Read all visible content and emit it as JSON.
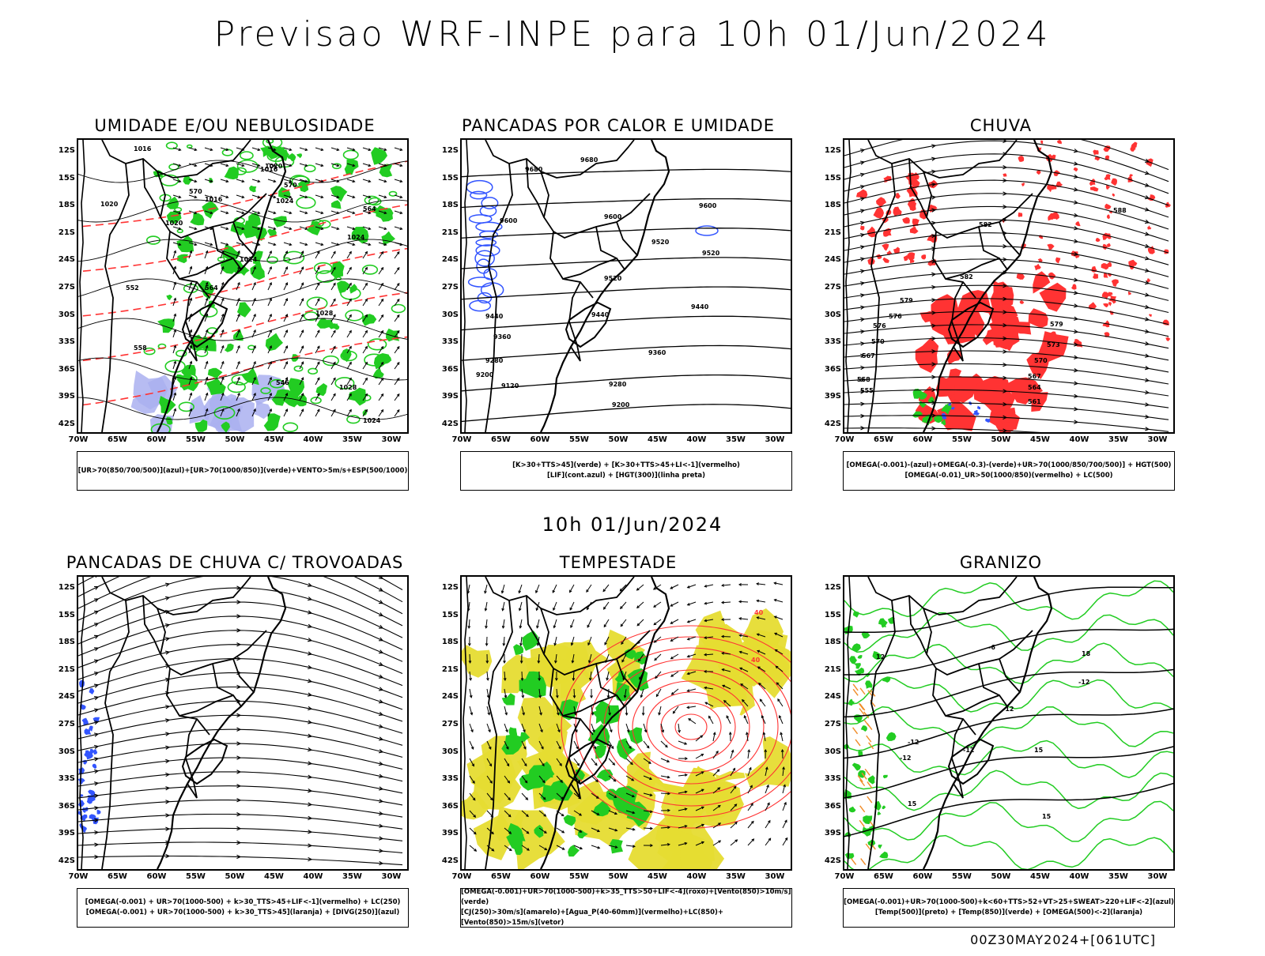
{
  "header": {
    "title": "Previsao WRF-INPE  para 10h 01/Jun/2024"
  },
  "mid_title": "10h 01/Jun/2024",
  "footer": "00Z30MAY2024+[061UTC]",
  "axes": {
    "lat_labels": [
      "12S",
      "15S",
      "18S",
      "21S",
      "24S",
      "27S",
      "30S",
      "33S",
      "36S",
      "39S",
      "42S"
    ],
    "lon_labels": [
      "70W",
      "65W",
      "60W",
      "55W",
      "50W",
      "45W",
      "40W",
      "35W",
      "30W"
    ]
  },
  "colors": {
    "green": "#22cc22",
    "red": "#ff3333",
    "blue": "#3355ff",
    "yellow": "#e6dc32",
    "lavender": "#aab0f0",
    "orange": "#f08c28",
    "black": "#000000"
  },
  "panels": [
    {
      "title": "UMIDADE E/OU NEBULOSIDADE",
      "legend": [
        "[UR>70(850/700/500)](azul)+[UR>70(1000/850)](verde)+VENTO>5m/s+ESP(500/1000)"
      ],
      "contour_labels": [
        "1016",
        "1016",
        "1016",
        "1020",
        "1020",
        "1020",
        "1024",
        "1024",
        "1024",
        "1028",
        "1028",
        "1024",
        "570",
        "564",
        "558",
        "552",
        "546",
        "570",
        "564"
      ]
    },
    {
      "title": "PANCADAS POR CALOR E UMIDADE",
      "legend": [
        "[K>30+TTS>45](verde) + [K>30+TTS>45+LI<-1](vermelho)",
        "[LIF](cont.azul) + [HGT(300)](linha preta)"
      ],
      "contour_labels": [
        "9680",
        "9680",
        "9600",
        "9600",
        "9600",
        "9520",
        "9520",
        "9520",
        "9440",
        "9440",
        "9440",
        "9360",
        "9360",
        "9280",
        "9280",
        "9200",
        "9200",
        "9120"
      ]
    },
    {
      "title": "CHUVA",
      "legend": [
        "[OMEGA(-0.001)-(azul)+OMEGA(-0.3)-(verde)+UR>70(1000/850/700/500)] + HGT(500)",
        "[OMEGA(-0.01)_UR>50(1000/850)(vermelho) + LC(500)"
      ],
      "contour_labels": [
        "588",
        "582",
        "582",
        "579",
        "579",
        "576",
        "576",
        "573",
        "570",
        "570",
        "567",
        "567",
        "564",
        "561",
        "558",
        "555"
      ]
    },
    {
      "title": "PANCADAS DE CHUVA C/ TROVOADAS",
      "legend": [
        "[OMEGA(-0.001) + UR>70(1000-500) + k>30_TTS>45+LIF<-1](vermelho) + LC(250)",
        "[OMEGA(-0.001) + UR>70(1000-500) + k>30_TTS>45](laranja) + [DIVG(250)](azul)"
      ]
    },
    {
      "title": "TEMPESTADE",
      "legend": [
        "[OMEGA(-0.001)+UR>70(1000-500)+k>35_TTS>50+LIF<-4](roxo)+[Vento(850)>10m/s](verde)",
        "[CJ(250)>30m/s](amarelo)+[Agua_P(40-60mm)](vermelho)+LC(850)+[Vento(850)>15m/s](vetor)"
      ],
      "contour_labels": [
        "40",
        "40"
      ]
    },
    {
      "title": "GRANIZO",
      "legend": [
        "[OMEGA(-0.001)+UR>70(1000-500)+k<60+TTS>52+VT>25+SWEAT>220+LIF<-2](azul)",
        "[Temp(500)](preto) + [Temp(850)](verde) + [OMEGA(500)<-2](laranja)"
      ],
      "contour_labels": [
        "-6",
        "-12",
        "-12",
        "-12",
        "15",
        "-12",
        "-12",
        "15",
        "15",
        "18",
        "12"
      ]
    }
  ]
}
